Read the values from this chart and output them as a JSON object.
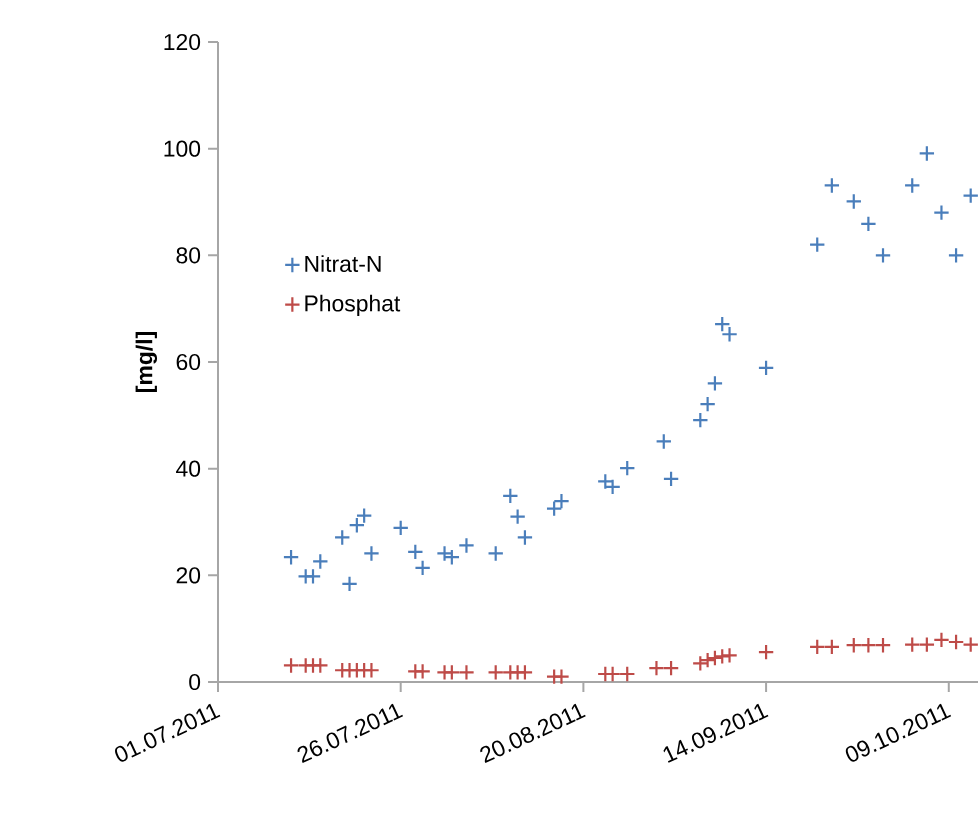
{
  "chart_data": {
    "type": "scatter",
    "ylabel": "[mg/l]",
    "xlim": [
      "2011-07-01",
      "2011-10-13"
    ],
    "ylim": [
      0,
      120
    ],
    "yticks": [
      0,
      20,
      40,
      60,
      80,
      100,
      120
    ],
    "xticks": [
      {
        "value": "2011-07-01",
        "label": "01.07.2011"
      },
      {
        "value": "2011-07-26",
        "label": "26.07.2011"
      },
      {
        "value": "2011-08-20",
        "label": "20.08.2011"
      },
      {
        "value": "2011-09-14",
        "label": "14.09.2011"
      },
      {
        "value": "2011-10-09",
        "label": "09.10.2011"
      }
    ],
    "grid": false,
    "legend": "left",
    "marker": "cross",
    "series": [
      {
        "name": "Nitrat-N",
        "color": "#4a7ebb",
        "x": [
          "2011-07-11",
          "2011-07-13",
          "2011-07-14",
          "2011-07-15",
          "2011-07-18",
          "2011-07-19",
          "2011-07-20",
          "2011-07-21",
          "2011-07-22",
          "2011-07-26",
          "2011-07-28",
          "2011-07-29",
          "2011-08-01",
          "2011-08-02",
          "2011-08-04",
          "2011-08-08",
          "2011-08-10",
          "2011-08-11",
          "2011-08-12",
          "2011-08-16",
          "2011-08-17",
          "2011-08-23",
          "2011-08-24",
          "2011-08-26",
          "2011-08-31",
          "2011-09-01",
          "2011-09-05",
          "2011-09-06",
          "2011-09-07",
          "2011-09-08",
          "2011-09-09",
          "2011-09-14",
          "2011-09-21",
          "2011-09-23",
          "2011-09-26",
          "2011-09-28",
          "2011-09-30",
          "2011-10-04",
          "2011-10-06",
          "2011-10-08",
          "2011-10-10",
          "2011-10-12"
        ],
        "values": [
          23.4,
          19.8,
          19.8,
          22.6,
          27.1,
          18.4,
          29.4,
          31.2,
          24.1,
          28.9,
          24.4,
          21.4,
          24.1,
          23.4,
          25.6,
          24.1,
          34.9,
          31.0,
          27.1,
          32.5,
          33.9,
          37.6,
          36.6,
          40.1,
          45.1,
          38.1,
          49.1,
          52.1,
          56.0,
          67.1,
          65.2,
          58.9,
          82.0,
          93.1,
          90.1,
          85.9,
          80.0,
          93.1,
          99.1,
          88.0,
          80.0,
          91.2
        ]
      },
      {
        "name": "Phosphat",
        "color": "#be4b48",
        "x": [
          "2011-07-11",
          "2011-07-13",
          "2011-07-14",
          "2011-07-15",
          "2011-07-18",
          "2011-07-19",
          "2011-07-20",
          "2011-07-21",
          "2011-07-22",
          "2011-07-28",
          "2011-07-29",
          "2011-08-01",
          "2011-08-02",
          "2011-08-04",
          "2011-08-08",
          "2011-08-10",
          "2011-08-11",
          "2011-08-12",
          "2011-08-16",
          "2011-08-17",
          "2011-08-23",
          "2011-08-24",
          "2011-08-26",
          "2011-08-30",
          "2011-09-01",
          "2011-09-05",
          "2011-09-06",
          "2011-09-07",
          "2011-09-08",
          "2011-09-09",
          "2011-09-14",
          "2011-09-21",
          "2011-09-23",
          "2011-09-26",
          "2011-09-28",
          "2011-09-30",
          "2011-10-04",
          "2011-10-06",
          "2011-10-08",
          "2011-10-10",
          "2011-10-12"
        ],
        "values": [
          3.1,
          3.1,
          3.1,
          3.1,
          2.2,
          2.2,
          2.2,
          2.2,
          2.2,
          2.0,
          2.0,
          1.8,
          1.8,
          1.8,
          1.8,
          1.8,
          1.8,
          1.8,
          1.0,
          1.0,
          1.5,
          1.5,
          1.5,
          2.6,
          2.6,
          3.5,
          4.1,
          4.5,
          4.8,
          5.0,
          5.6,
          6.6,
          6.6,
          6.9,
          6.9,
          6.9,
          7.0,
          7.0,
          7.9,
          7.5,
          7.0
        ]
      }
    ]
  }
}
